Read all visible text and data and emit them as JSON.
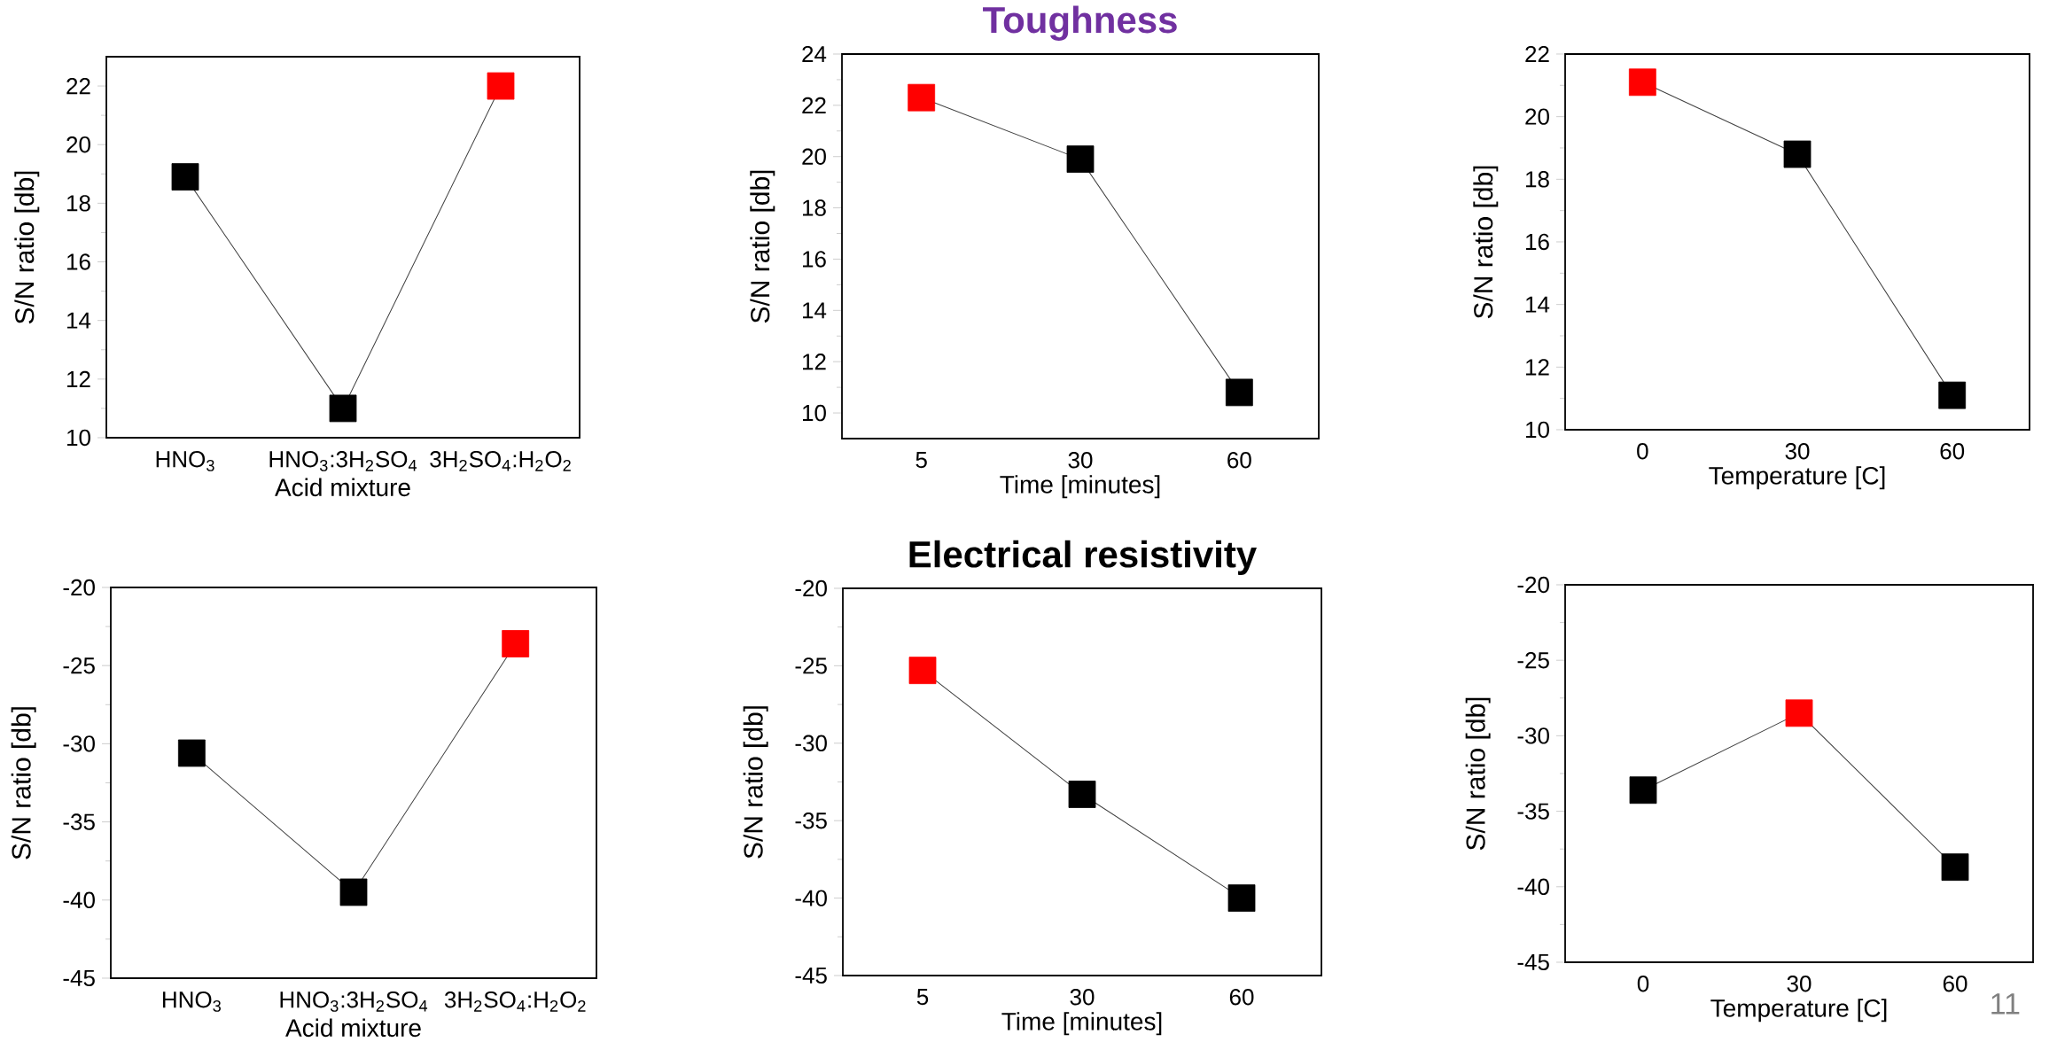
{
  "chart_data": [
    {
      "type": "line",
      "xlabel": "Acid mixture",
      "ylabel": "S/N ratio [db]",
      "categories": [
        "HNO$_{3}$",
        "HNO$_{3}$:3H$_{2}$SO$_{4}$",
        "3H$_{2}$SO$_{4}$:H$_{2}$O$_{2}$"
      ],
      "ylim": [
        10,
        23
      ],
      "yticks": [
        10,
        12,
        14,
        16,
        18,
        20,
        22
      ],
      "marker": "square",
      "line_style": "solid",
      "series": [
        {
          "color": "#404040",
          "colors": [
            "#000000",
            "#000000",
            "#ff0000"
          ],
          "values": [
            18.9,
            11.0,
            22.0
          ]
        }
      ]
    },
    {
      "type": "line",
      "title": "Toughness",
      "xlabel": "Time [minutes]",
      "ylabel": "S/N ratio [db]",
      "categories": [
        "5",
        "30",
        "60"
      ],
      "ylim": [
        9,
        24
      ],
      "yticks": [
        10,
        12,
        14,
        16,
        18,
        20,
        22,
        24
      ],
      "marker": "square",
      "line_style": "solid",
      "series": [
        {
          "color": "#404040",
          "colors": [
            "#ff0000",
            "#000000",
            "#000000"
          ],
          "values": [
            22.3,
            19.9,
            10.8
          ]
        }
      ]
    },
    {
      "type": "line",
      "xlabel": "Temperature [C]",
      "ylabel": "S/N ratio [db]",
      "categories": [
        "0",
        "30",
        "60"
      ],
      "ylim": [
        10,
        22
      ],
      "yticks": [
        10,
        12,
        14,
        16,
        18,
        20,
        22
      ],
      "marker": "square",
      "line_style": "solid",
      "series": [
        {
          "color": "#404040",
          "colors": [
            "#ff0000",
            "#000000",
            "#000000"
          ],
          "values": [
            21.1,
            18.8,
            11.1
          ]
        }
      ]
    },
    {
      "type": "line",
      "xlabel": "Acid mixture",
      "ylabel": "S/N ratio [db]",
      "categories": [
        "HNO$_{3}$",
        "HNO$_{3}$:3H$_{2}$SO$_{4}$",
        "3H$_{2}$SO$_{4}$:H$_{2}$O$_{2}$"
      ],
      "ylim": [
        -45,
        -20
      ],
      "yticks": [
        -45,
        -40,
        -35,
        -30,
        -25,
        -20
      ],
      "marker": "square",
      "line_style": "solid",
      "series": [
        {
          "color": "#404040",
          "colors": [
            "#000000",
            "#000000",
            "#ff0000"
          ],
          "values": [
            -30.6,
            -39.5,
            -23.6
          ]
        }
      ]
    },
    {
      "type": "line",
      "title": "Electrical resistivity",
      "xlabel": "Time [minutes]",
      "ylabel": "S/N ratio [db]",
      "categories": [
        "5",
        "30",
        "60"
      ],
      "ylim": [
        -45,
        -20
      ],
      "yticks": [
        -45,
        -40,
        -35,
        -30,
        -25,
        -20
      ],
      "marker": "square",
      "line_style": "solid",
      "series": [
        {
          "color": "#404040",
          "colors": [
            "#ff0000",
            "#000000",
            "#000000"
          ],
          "values": [
            -25.3,
            -33.3,
            -40.0
          ]
        }
      ]
    },
    {
      "type": "line",
      "xlabel": "Temperature [C]",
      "ylabel": "S/N ratio [db]",
      "categories": [
        "0",
        "30",
        "60"
      ],
      "ylim": [
        -45,
        -20
      ],
      "yticks": [
        -45,
        -40,
        -35,
        -30,
        -25,
        -20
      ],
      "marker": "square",
      "line_style": "solid",
      "annotations": [
        "11"
      ],
      "series": [
        {
          "color": "#404040",
          "colors": [
            "#000000",
            "#ff0000",
            "#000000"
          ],
          "values": [
            -33.6,
            -28.5,
            -38.7
          ]
        }
      ]
    }
  ]
}
